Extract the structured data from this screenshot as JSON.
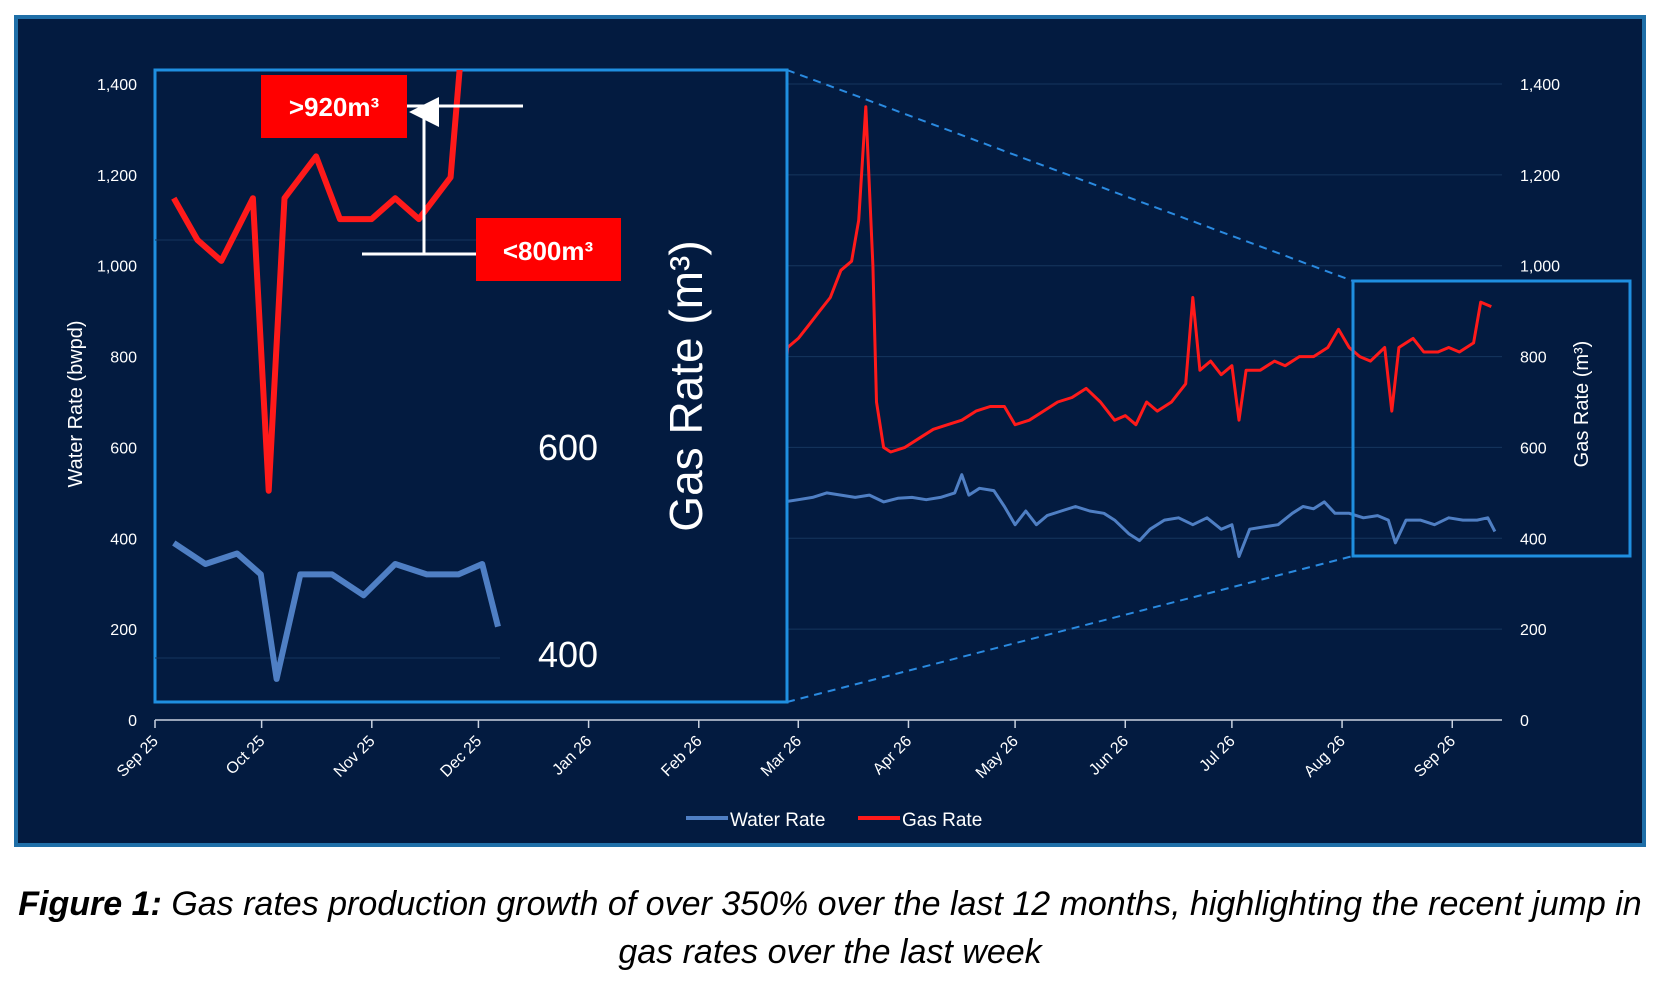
{
  "caption": {
    "label": "Figure 1:",
    "text": "Gas rates production growth of over 350% over the last 12 months, highlighting the recent jump in gas rates over the last week"
  },
  "colors": {
    "background": "#031b40",
    "water": "#4f7fc4",
    "gas": "#ff1a1a",
    "highlight": "#1f8fe0",
    "callout": "#ff0000"
  },
  "chart_data": {
    "type": "line",
    "title": "",
    "xlabel": "",
    "ylabel": "Water Rate (bwpd)",
    "y2label": "Gas Rate (m³)",
    "ylim": [
      0,
      1400
    ],
    "y2lim": [
      0,
      1400
    ],
    "yticks": [
      "0",
      "200",
      "400",
      "600",
      "800",
      "1,000",
      "1,200",
      "1,400"
    ],
    "x_tick_labels": [
      "Sep 25",
      "Oct 25",
      "Nov 25",
      "Dec 25",
      "Jan 26",
      "Feb 26",
      "Mar 26",
      "Apr 26",
      "May 26",
      "Jun 26",
      "Jul 26",
      "Aug 26",
      "Sep 26"
    ],
    "grid": true,
    "legend_position": "bottom",
    "series": [
      {
        "name": "Water Rate",
        "axis": "left",
        "points": [
          [
            "2026-02-25",
            480
          ],
          [
            "2026-03-01",
            485
          ],
          [
            "2026-03-05",
            490
          ],
          [
            "2026-03-09",
            500
          ],
          [
            "2026-03-13",
            495
          ],
          [
            "2026-03-17",
            490
          ],
          [
            "2026-03-21",
            495
          ],
          [
            "2026-03-25",
            480
          ],
          [
            "2026-03-29",
            488
          ],
          [
            "2026-04-02",
            490
          ],
          [
            "2026-04-06",
            485
          ],
          [
            "2026-04-10",
            490
          ],
          [
            "2026-04-14",
            500
          ],
          [
            "2026-04-16",
            540
          ],
          [
            "2026-04-18",
            495
          ],
          [
            "2026-04-21",
            510
          ],
          [
            "2026-04-25",
            505
          ],
          [
            "2026-04-28",
            470
          ],
          [
            "2026-05-01",
            430
          ],
          [
            "2026-05-04",
            460
          ],
          [
            "2026-05-07",
            430
          ],
          [
            "2026-05-10",
            450
          ],
          [
            "2026-05-14",
            460
          ],
          [
            "2026-05-18",
            470
          ],
          [
            "2026-05-22",
            460
          ],
          [
            "2026-05-26",
            455
          ],
          [
            "2026-05-29",
            440
          ],
          [
            "2026-06-02",
            410
          ],
          [
            "2026-06-05",
            395
          ],
          [
            "2026-06-08",
            420
          ],
          [
            "2026-06-12",
            440
          ],
          [
            "2026-06-16",
            445
          ],
          [
            "2026-06-20",
            430
          ],
          [
            "2026-06-24",
            445
          ],
          [
            "2026-06-28",
            420
          ],
          [
            "2026-07-01",
            430
          ],
          [
            "2026-07-03",
            360
          ],
          [
            "2026-07-06",
            420
          ],
          [
            "2026-07-10",
            425
          ],
          [
            "2026-07-14",
            430
          ],
          [
            "2026-07-18",
            455
          ],
          [
            "2026-07-21",
            470
          ],
          [
            "2026-07-24",
            465
          ],
          [
            "2026-07-27",
            480
          ],
          [
            "2026-07-30",
            455
          ],
          [
            "2026-08-03",
            455
          ],
          [
            "2026-08-07",
            445
          ],
          [
            "2026-08-11",
            450
          ],
          [
            "2026-08-14",
            440
          ],
          [
            "2026-08-16",
            390
          ],
          [
            "2026-08-19",
            440
          ],
          [
            "2026-08-23",
            440
          ],
          [
            "2026-08-27",
            430
          ],
          [
            "2026-08-31",
            445
          ],
          [
            "2026-09-04",
            440
          ],
          [
            "2026-09-08",
            440
          ],
          [
            "2026-09-11",
            445
          ],
          [
            "2026-09-13",
            415
          ]
        ]
      },
      {
        "name": "Gas Rate",
        "axis": "right",
        "points": [
          [
            "2026-02-25",
            720
          ],
          [
            "2026-02-26",
            820
          ],
          [
            "2026-03-01",
            840
          ],
          [
            "2026-03-04",
            870
          ],
          [
            "2026-03-07",
            900
          ],
          [
            "2026-03-10",
            930
          ],
          [
            "2026-03-13",
            990
          ],
          [
            "2026-03-16",
            1010
          ],
          [
            "2026-03-18",
            1100
          ],
          [
            "2026-03-20",
            1350
          ],
          [
            "2026-03-22",
            1000
          ],
          [
            "2026-03-23",
            700
          ],
          [
            "2026-03-25",
            600
          ],
          [
            "2026-03-27",
            590
          ],
          [
            "2026-03-31",
            600
          ],
          [
            "2026-04-04",
            620
          ],
          [
            "2026-04-08",
            640
          ],
          [
            "2026-04-12",
            650
          ],
          [
            "2026-04-16",
            660
          ],
          [
            "2026-04-20",
            680
          ],
          [
            "2026-04-24",
            690
          ],
          [
            "2026-04-28",
            690
          ],
          [
            "2026-05-01",
            650
          ],
          [
            "2026-05-05",
            660
          ],
          [
            "2026-05-09",
            680
          ],
          [
            "2026-05-13",
            700
          ],
          [
            "2026-05-17",
            710
          ],
          [
            "2026-05-21",
            730
          ],
          [
            "2026-05-25",
            700
          ],
          [
            "2026-05-29",
            660
          ],
          [
            "2026-06-01",
            670
          ],
          [
            "2026-06-04",
            650
          ],
          [
            "2026-06-07",
            700
          ],
          [
            "2026-06-10",
            680
          ],
          [
            "2026-06-14",
            700
          ],
          [
            "2026-06-18",
            740
          ],
          [
            "2026-06-20",
            930
          ],
          [
            "2026-06-22",
            770
          ],
          [
            "2026-06-25",
            790
          ],
          [
            "2026-06-28",
            760
          ],
          [
            "2026-07-01",
            780
          ],
          [
            "2026-07-03",
            660
          ],
          [
            "2026-07-05",
            770
          ],
          [
            "2026-07-09",
            770
          ],
          [
            "2026-07-13",
            790
          ],
          [
            "2026-07-16",
            780
          ],
          [
            "2026-07-20",
            800
          ],
          [
            "2026-07-24",
            800
          ],
          [
            "2026-07-28",
            820
          ],
          [
            "2026-07-31",
            860
          ],
          [
            "2026-08-03",
            820
          ],
          [
            "2026-08-06",
            800
          ],
          [
            "2026-08-09",
            790
          ],
          [
            "2026-08-13",
            820
          ],
          [
            "2026-08-15",
            680
          ],
          [
            "2026-08-17",
            820
          ],
          [
            "2026-08-21",
            840
          ],
          [
            "2026-08-24",
            810
          ],
          [
            "2026-08-28",
            810
          ],
          [
            "2026-08-31",
            820
          ],
          [
            "2026-09-03",
            810
          ],
          [
            "2026-09-07",
            830
          ],
          [
            "2026-09-09",
            920
          ],
          [
            "2026-09-12",
            910
          ]
        ]
      }
    ],
    "zoom_inset": {
      "range": [
        "2026-08-01",
        "2026-09-13"
      ],
      "axis_labels": [
        "600",
        "400"
      ],
      "axis_title": "Gas Rate (m³)",
      "annotations": [
        ">920m³",
        "<800m³"
      ]
    }
  }
}
